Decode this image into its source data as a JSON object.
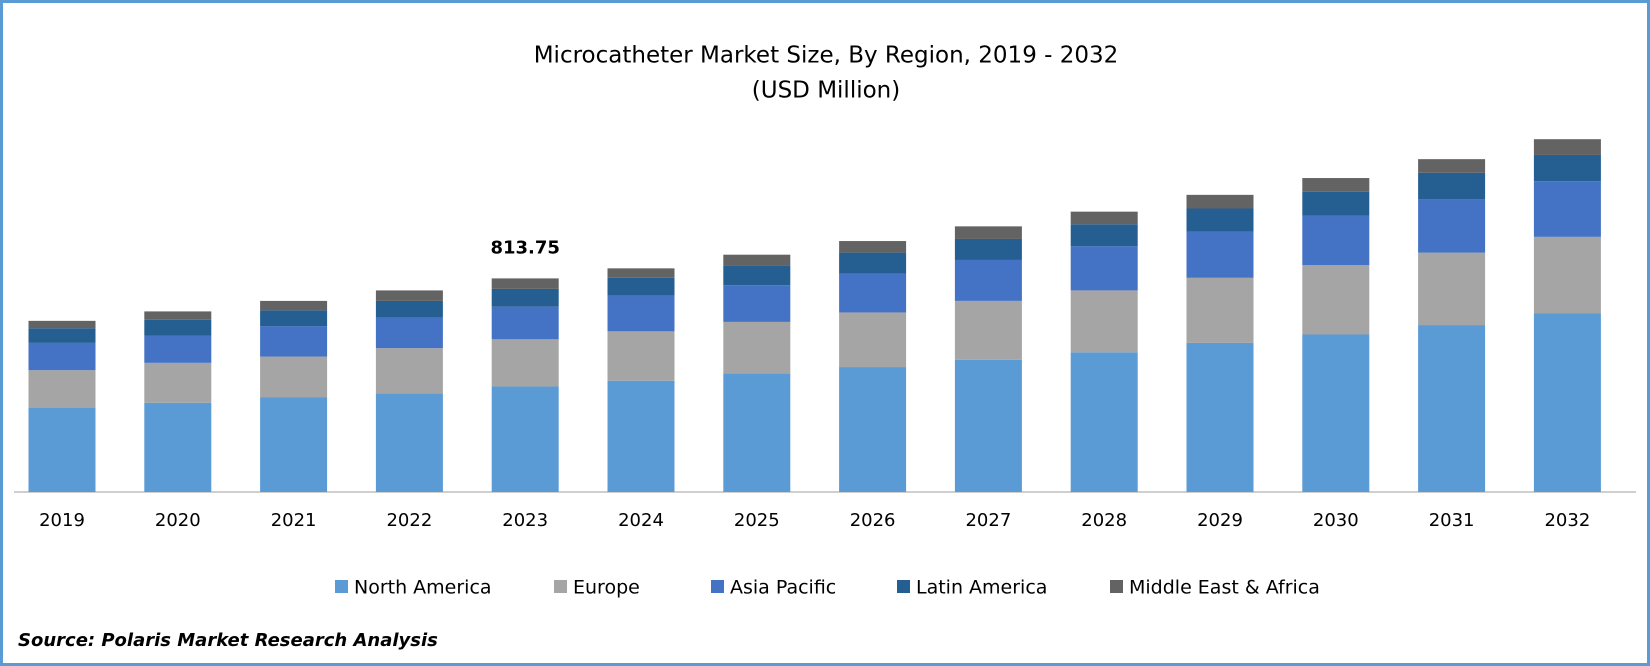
{
  "chart_data": {
    "type": "stacked-bar",
    "title": "Microcatheter Market Size, By Region, 2019 - 2032",
    "subtitle": "(USD Million)",
    "categories": [
      "2019",
      "2020",
      "2021",
      "2022",
      "2023",
      "2024",
      "2025",
      "2026",
      "2027",
      "2028",
      "2029",
      "2030",
      "2031",
      "2032"
    ],
    "series": [
      {
        "name": "North America",
        "color": "#5b9bd5",
        "values": [
          320,
          340,
          360,
          376,
          401.75,
          424,
          452,
          476,
          504,
          532,
          568,
          600,
          636,
          680
        ]
      },
      {
        "name": "Europe",
        "color": "#a5a5a5",
        "values": [
          144,
          152,
          156,
          172,
          180,
          188,
          196,
          208,
          224,
          236,
          248,
          264,
          276,
          292
        ]
      },
      {
        "name": "Asia Pacific",
        "color": "#4472c4",
        "values": [
          104,
          104,
          116,
          116,
          124,
          136,
          140,
          148,
          156,
          168,
          176,
          188,
          204,
          212
        ]
      },
      {
        "name": "Latin America",
        "color": "#255e91",
        "values": [
          56,
          60,
          60,
          64,
          68,
          68,
          76,
          80,
          80,
          84,
          88,
          92,
          100,
          100
        ]
      },
      {
        "name": "Middle East & Africa",
        "color": "#636363",
        "values": [
          28,
          32,
          36,
          40,
          40,
          36,
          40,
          44,
          48,
          48,
          52,
          52,
          52,
          60
        ]
      }
    ],
    "total_label": {
      "category": "2023",
      "value": 813.75
    },
    "source": "Source: Polaris Market Research Analysis"
  }
}
